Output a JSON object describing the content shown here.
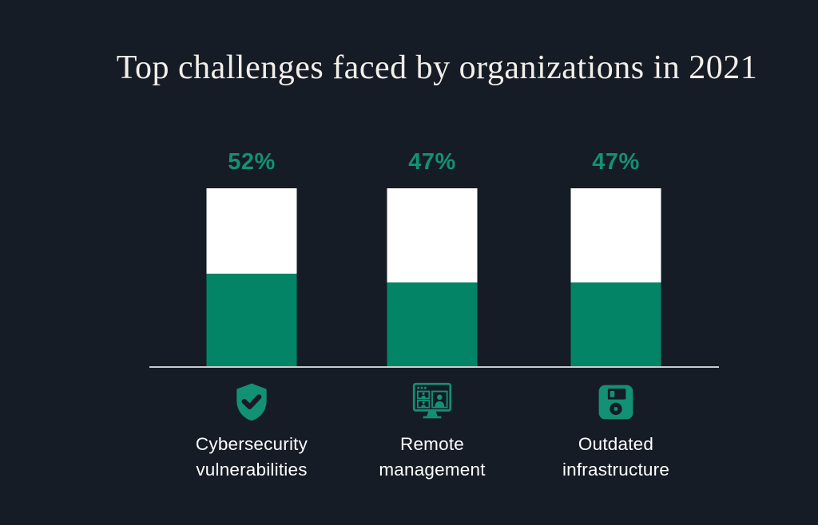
{
  "title": "Top challenges faced by organizations in 2021",
  "colors": {
    "bg": "#161c26",
    "teal": "#048467",
    "teal_bright": "#129174",
    "white": "#ffffff",
    "offwhite": "#f2efe9",
    "line": "#c9cdd0"
  },
  "chart_data": {
    "type": "bar",
    "title": "Top challenges faced by organizations in 2021",
    "categories": [
      "Cybersecurity vulnerabilities",
      "Remote management",
      "Outdated infrastructure"
    ],
    "values": [
      52,
      47,
      47
    ],
    "value_labels": [
      "52%",
      "47%",
      "47%"
    ],
    "unit": "%",
    "ylim": [
      0,
      100
    ],
    "xlabel": "",
    "ylabel": "",
    "legend": false,
    "grid": false,
    "layout_hints": "full-height white bar containers filled from the bottom with teal proportional to value; teal percentage labels above bars; gray baseline under bars; teal category icons and white two-line labels below baseline"
  },
  "columns": [
    {
      "percent": "52%",
      "icon": "shield-check-icon",
      "label": "Cybersecurity\nvulnerabilities"
    },
    {
      "percent": "47%",
      "icon": "video-conference-icon",
      "label": "Remote\nmanagement"
    },
    {
      "percent": "47%",
      "icon": "floppy-disk-icon",
      "label": "Outdated\ninfrastructure"
    }
  ]
}
